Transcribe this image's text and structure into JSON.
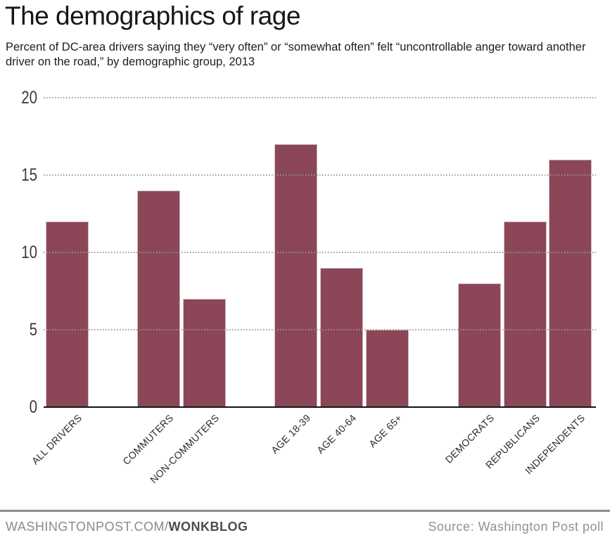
{
  "page": {
    "title": "The demographics of rage",
    "subtitle": "Percent of DC-area drivers saying they “very often” or “somewhat often” felt “uncontrollable anger toward another driver on the road,” by demographic group, 2013"
  },
  "chart_data": {
    "type": "bar",
    "title": "The demographics of rage",
    "subtitle": "Percent of DC-area drivers saying they “very often” or “somewhat often” felt “uncontrollable anger toward another driver on the road,” by demographic group, 2013",
    "categories": [
      "ALL DRIVERS",
      "COMMUTERS",
      "NON-COMMUTERS",
      "AGE 18-39",
      "AGE 40-64",
      "AGE 65+",
      "DEMOCRATS",
      "REPUBLICANS",
      "INDEPENDENTS"
    ],
    "values": [
      12,
      14,
      7,
      17,
      9,
      5,
      8,
      12,
      16
    ],
    "groups": [
      [
        "ALL DRIVERS"
      ],
      [
        "COMMUTERS",
        "NON-COMMUTERS"
      ],
      [
        "AGE 18-39",
        "AGE 40-64",
        "AGE 65+"
      ],
      [
        "DEMOCRATS",
        "REPUBLICANS",
        "INDEPENDENTS"
      ]
    ],
    "xlabel": "",
    "ylabel": "",
    "yticks": [
      0,
      5,
      10,
      15,
      20
    ],
    "ylim": [
      0,
      20
    ],
    "grid": "horizontal-dotted",
    "legend": "none",
    "unit": "percent"
  },
  "colors": {
    "bar": "#8b4757",
    "bar_edge": "#d7bcc4",
    "grid": "#969696",
    "axis_text": "#3c3c3c",
    "tick_label_text": "#2b2b2b",
    "baseline": "#151515",
    "title_text": "#161616",
    "footer_rule": "#8d8d8d",
    "footer_text": "#8a8a8a",
    "footer_bold_text": "#4d4d4d",
    "source_text": "#929292"
  },
  "footer": {
    "site_regular": "WASHINGTONPOST.COM/",
    "site_bold": "WONKBLOG",
    "source": "Source: Washington Post poll"
  }
}
